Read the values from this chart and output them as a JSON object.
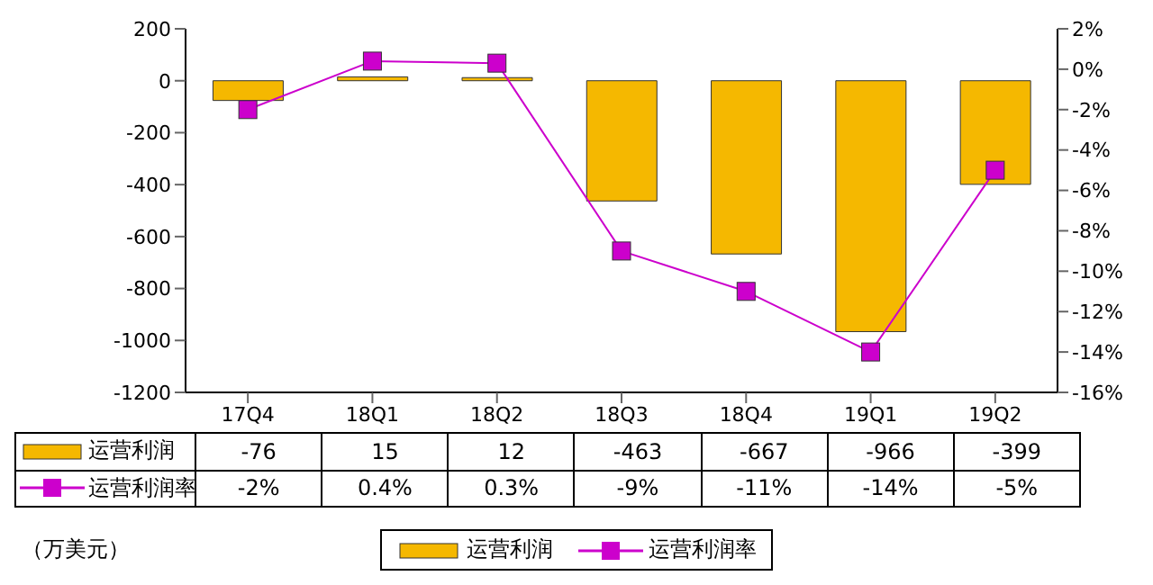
{
  "chart_data": {
    "type": "bar",
    "categories": [
      "17Q4",
      "18Q1",
      "18Q2",
      "18Q3",
      "18Q4",
      "19Q1",
      "19Q2"
    ],
    "series": [
      {
        "name": "运营利润",
        "color": "#f5b800",
        "values": [
          -76,
          15,
          12,
          -463,
          -667,
          -966,
          -399
        ],
        "value_labels": [
          "-76",
          "15",
          "12",
          "-463",
          "-667",
          "-966",
          "-399"
        ]
      },
      {
        "name": "运营利润率",
        "type": "line",
        "axis": "y2",
        "color": "#cc00cc",
        "values": [
          -2,
          0.4,
          0.3,
          -9,
          -11,
          -14,
          -5
        ],
        "value_labels": [
          "-2%",
          "0.4%",
          "0.3%",
          "-9%",
          "-11%",
          "-14%",
          "-5%"
        ]
      }
    ],
    "ylim": [
      -1200,
      200
    ],
    "yticks": [
      -1200,
      -1000,
      -800,
      -600,
      -400,
      -200,
      0,
      200
    ],
    "y2lim": [
      -16,
      2
    ],
    "y2ticks": [
      {
        "value": -16,
        "label": "-16%"
      },
      {
        "value": -14,
        "label": "-14%"
      },
      {
        "value": -12,
        "label": "-12%"
      },
      {
        "value": -10,
        "label": "-10%"
      },
      {
        "value": -8,
        "label": "-8%"
      },
      {
        "value": -6,
        "label": "-6%"
      },
      {
        "value": -4,
        "label": "-4%"
      },
      {
        "value": -2,
        "label": "-2%"
      },
      {
        "value": 0,
        "label": "0%"
      },
      {
        "value": 2,
        "label": "2%"
      }
    ],
    "marker": "square",
    "legend": "bottom",
    "grid": false,
    "annotations": [
      "（万美元）"
    ]
  }
}
